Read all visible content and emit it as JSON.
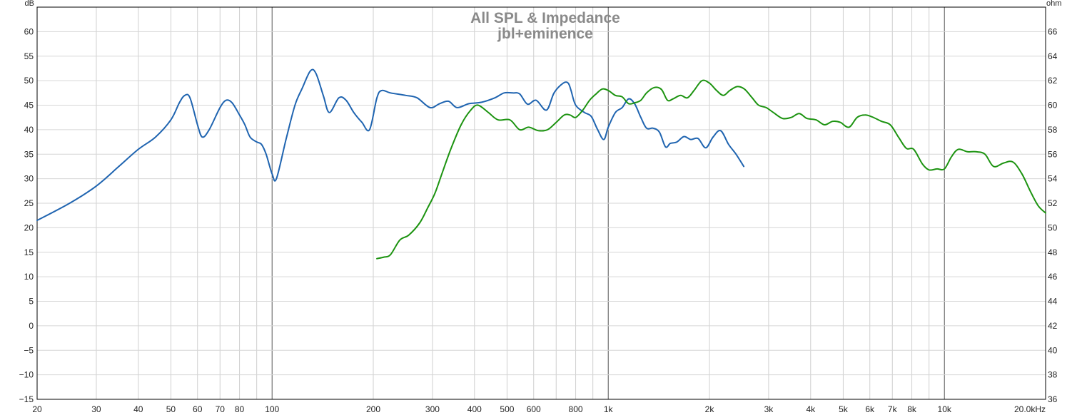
{
  "chart_data": {
    "type": "line",
    "title": "All SPL & Impedance",
    "subtitle": "jbl+eminence",
    "left_unit": "dB",
    "right_unit": "ohm",
    "x_scale": "log",
    "xlim": [
      20,
      20000
    ],
    "ylim": [
      -15,
      65
    ],
    "y2lim": [
      36,
      68
    ],
    "grid": true,
    "x_ticks": [
      {
        "value": 20,
        "label": "20"
      },
      {
        "value": 30,
        "label": "30"
      },
      {
        "value": 40,
        "label": "40"
      },
      {
        "value": 50,
        "label": "50"
      },
      {
        "value": 60,
        "label": "60"
      },
      {
        "value": 70,
        "label": "70"
      },
      {
        "value": 80,
        "label": "80"
      },
      {
        "value": 100,
        "label": "100"
      },
      {
        "value": 200,
        "label": "200"
      },
      {
        "value": 300,
        "label": "300"
      },
      {
        "value": 400,
        "label": "400"
      },
      {
        "value": 500,
        "label": "500"
      },
      {
        "value": 600,
        "label": "600"
      },
      {
        "value": 800,
        "label": "800"
      },
      {
        "value": 1000,
        "label": "1k"
      },
      {
        "value": 2000,
        "label": "2k"
      },
      {
        "value": 3000,
        "label": "3k"
      },
      {
        "value": 4000,
        "label": "4k"
      },
      {
        "value": 5000,
        "label": "5k"
      },
      {
        "value": 6000,
        "label": "6k"
      },
      {
        "value": 7000,
        "label": "7k"
      },
      {
        "value": 8000,
        "label": "8k"
      },
      {
        "value": 10000,
        "label": "10k"
      },
      {
        "value": 20000,
        "label": "20.0kHz"
      }
    ],
    "y_ticks": [
      {
        "value": 60,
        "label": "60"
      },
      {
        "value": 55,
        "label": "55"
      },
      {
        "value": 50,
        "label": "50"
      },
      {
        "value": 45,
        "label": "45"
      },
      {
        "value": 40,
        "label": "40"
      },
      {
        "value": 35,
        "label": "35"
      },
      {
        "value": 30,
        "label": "30"
      },
      {
        "value": 25,
        "label": "25"
      },
      {
        "value": 20,
        "label": "20"
      },
      {
        "value": 15,
        "label": "15"
      },
      {
        "value": 10,
        "label": "10"
      },
      {
        "value": 5,
        "label": "5"
      },
      {
        "value": 0,
        "label": "0"
      },
      {
        "value": -5,
        "label": "−5"
      },
      {
        "value": -10,
        "label": "−10"
      },
      {
        "value": -15,
        "label": "−15"
      }
    ],
    "y2_ticks": [
      {
        "value": 66,
        "label": "66"
      },
      {
        "value": 64,
        "label": "64"
      },
      {
        "value": 62,
        "label": "62"
      },
      {
        "value": 60,
        "label": "60"
      },
      {
        "value": 58,
        "label": "58"
      },
      {
        "value": 56,
        "label": "56"
      },
      {
        "value": 54,
        "label": "54"
      },
      {
        "value": 52,
        "label": "52"
      },
      {
        "value": 50,
        "label": "50"
      },
      {
        "value": 48,
        "label": "48"
      },
      {
        "value": 46,
        "label": "46"
      },
      {
        "value": 44,
        "label": "44"
      },
      {
        "value": 42,
        "label": "42"
      },
      {
        "value": 40,
        "label": "40"
      },
      {
        "value": 38,
        "label": "38"
      },
      {
        "value": 36,
        "label": "36"
      }
    ],
    "series": [
      {
        "color": "#1f64b0",
        "x": [
          20,
          25,
          30,
          35,
          40,
          45,
          50,
          53,
          55,
          57,
          60,
          62,
          65,
          70,
          73,
          76,
          80,
          83,
          86,
          90,
          93,
          96,
          100,
          103,
          110,
          117,
          123,
          130,
          135,
          142,
          148,
          158,
          166,
          175,
          185,
          195,
          205,
          212,
          225,
          250,
          270,
          295,
          315,
          335,
          355,
          385,
          420,
          460,
          490,
          520,
          545,
          575,
          610,
          655,
          690,
          735,
          760,
          775,
          800,
          850,
          890,
          930,
          970,
          1000,
          1050,
          1100,
          1150,
          1200,
          1250,
          1300,
          1360,
          1420,
          1480,
          1530,
          1600,
          1680,
          1760,
          1850,
          1950,
          2050,
          2160,
          2280,
          2400,
          2530
        ],
        "values": [
          21.5,
          25,
          28.5,
          32.5,
          36,
          38.5,
          42,
          45.5,
          47,
          46.5,
          41,
          38.5,
          40,
          44.5,
          46,
          45.5,
          43,
          41,
          38.5,
          37.5,
          37,
          35,
          31,
          30,
          38,
          45,
          48.5,
          52,
          51.5,
          47,
          43.5,
          46.5,
          46,
          43.5,
          41.5,
          40,
          46.5,
          48,
          47.5,
          47,
          46.5,
          44.5,
          45.3,
          45.8,
          44.5,
          45.3,
          45.6,
          46.5,
          47.5,
          47.5,
          47.3,
          45.2,
          46,
          44,
          47.5,
          49.5,
          49.5,
          48,
          45,
          43.5,
          42.7,
          40,
          38,
          40.5,
          43.5,
          44.5,
          46.3,
          45.2,
          42.5,
          40.3,
          40.3,
          39.5,
          36.5,
          37.2,
          37.5,
          38.6,
          38,
          38.2,
          36.3,
          38.5,
          39.8,
          37,
          35,
          32.5
        ]
      },
      {
        "color": "#1c9310",
        "x": [
          205,
          215,
          225,
          240,
          255,
          275,
          290,
          305,
          320,
          340,
          365,
          390,
          410,
          440,
          470,
          510,
          545,
          580,
          620,
          660,
          700,
          740,
          770,
          800,
          840,
          880,
          920,
          960,
          1000,
          1050,
          1100,
          1150,
          1200,
          1250,
          1300,
          1370,
          1440,
          1500,
          1560,
          1640,
          1720,
          1800,
          1900,
          2000,
          2100,
          2200,
          2300,
          2420,
          2540,
          2680,
          2800,
          2950,
          3100,
          3300,
          3500,
          3700,
          3900,
          4150,
          4400,
          4650,
          4900,
          5200,
          5500,
          5800,
          6100,
          6500,
          6900,
          7300,
          7700,
          8100,
          8600,
          9000,
          9500,
          10000,
          10500,
          11000,
          11700,
          12400,
          13200,
          14000,
          15000,
          16000,
          17000,
          18000,
          19000,
          20000
        ],
        "values": [
          13.7,
          14,
          14.5,
          17.5,
          18.5,
          21,
          24,
          27,
          31,
          36,
          41,
          44,
          45,
          43.5,
          42,
          42,
          40,
          40.5,
          39.8,
          40,
          41.5,
          43,
          43,
          42.5,
          44,
          46,
          47.3,
          48.3,
          48,
          47,
          46.7,
          45.3,
          45.5,
          46,
          47.5,
          48.6,
          48.2,
          46,
          46.3,
          47,
          46.5,
          48,
          50,
          49.5,
          48,
          47,
          48,
          48.8,
          48.3,
          46.5,
          45,
          44.5,
          43.5,
          42.3,
          42.5,
          43.3,
          42.3,
          42,
          41,
          41.7,
          41.5,
          40.5,
          42.5,
          43,
          42.6,
          41.7,
          41,
          38.5,
          36.2,
          36,
          33,
          31.8,
          32,
          32,
          34.5,
          36,
          35.5,
          35.5,
          35,
          32.5,
          33.2,
          33.4,
          31,
          27.5,
          24.5,
          23
        ]
      }
    ]
  }
}
